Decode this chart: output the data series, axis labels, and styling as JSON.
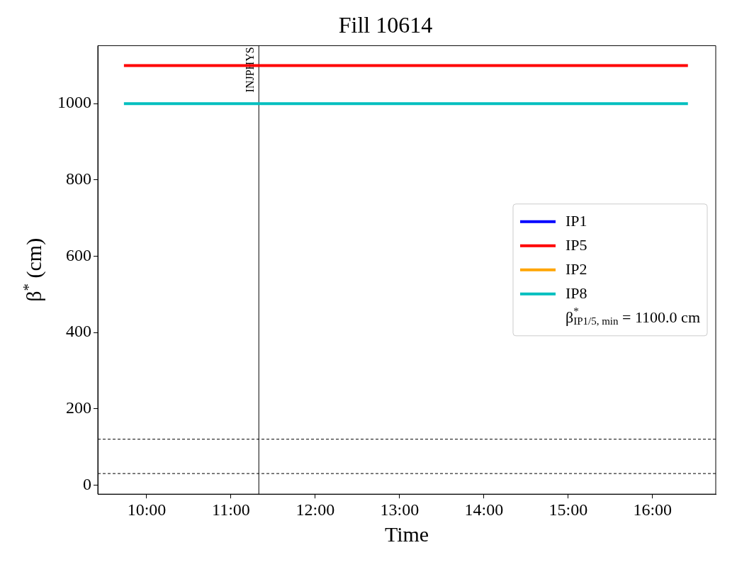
{
  "chart_data": {
    "type": "line",
    "title": "Fill 10614",
    "xlabel": "Time",
    "ylabel": "β$^{*}$ (cm)",
    "xlim": [
      9.42,
      16.75
    ],
    "ylim": [
      -24,
      1152
    ],
    "xticks": [
      {
        "value": 10,
        "label": "10:00"
      },
      {
        "value": 11,
        "label": "11:00"
      },
      {
        "value": 12,
        "label": "12:00"
      },
      {
        "value": 13,
        "label": "13:00"
      },
      {
        "value": 14,
        "label": "14:00"
      },
      {
        "value": 15,
        "label": "15:00"
      },
      {
        "value": 16,
        "label": "16:00"
      }
    ],
    "yticks": [
      0,
      200,
      400,
      600,
      800,
      1000
    ],
    "x": [
      9.73,
      16.42
    ],
    "series": [
      {
        "name": "IP1",
        "color": "#0000ff",
        "values": [
          null,
          null
        ]
      },
      {
        "name": "IP5",
        "color": "#ff0000",
        "values": [
          1100,
          1100
        ]
      },
      {
        "name": "IP2",
        "color": "#ffa500",
        "values": [
          null,
          null
        ]
      },
      {
        "name": "IP8",
        "color": "#00bfbf",
        "values": [
          1000,
          1000
        ]
      }
    ],
    "ref_lines": [
      {
        "axis": "x",
        "value": 11.33,
        "label": "INJPHYS",
        "color": "#000000",
        "line_style": "solid"
      },
      {
        "axis": "y",
        "value": 120,
        "label": null,
        "color": "#000000",
        "line_style": "dashed"
      },
      {
        "axis": "y",
        "value": 30,
        "label": null,
        "color": "#000000",
        "line_style": "dashed"
      }
    ],
    "annotations": [
      "β$^{*}$$_{IP1/5, min}$ = 1100.0 cm"
    ],
    "legend": "right",
    "grid": false,
    "marker": "none",
    "line_style": "solid"
  }
}
